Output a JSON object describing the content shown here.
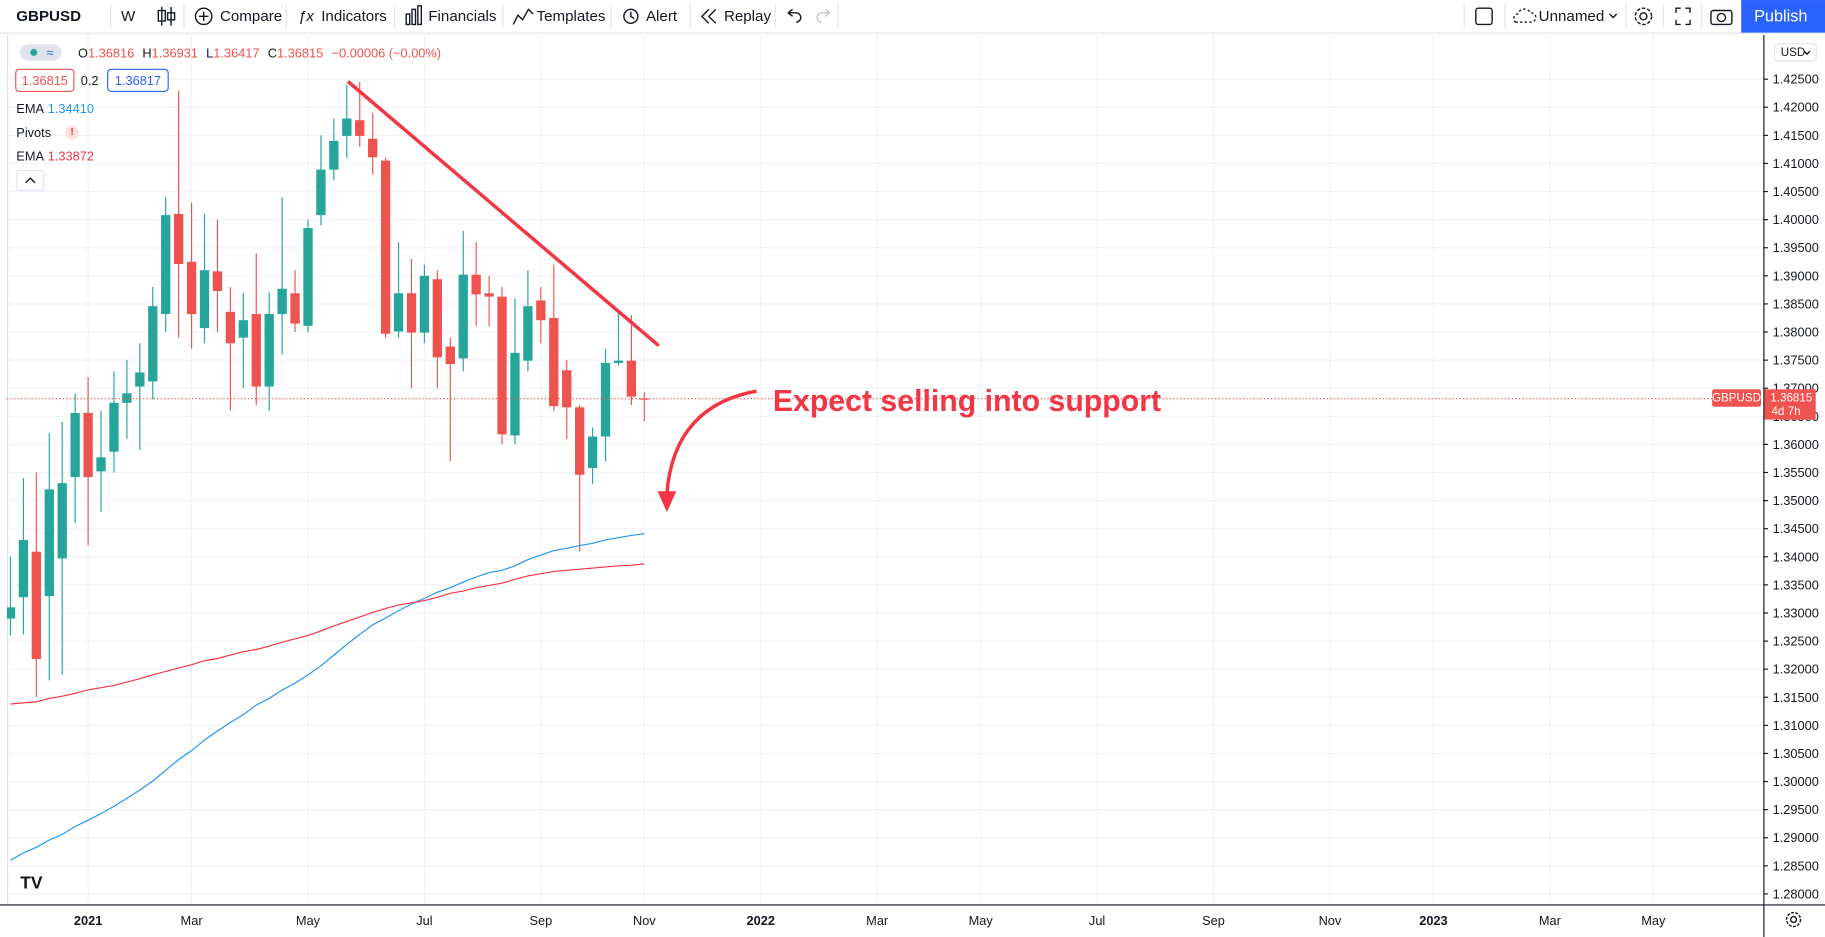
{
  "toolbar": {
    "interval": "W",
    "buttons": [
      "Compare",
      "Indicators",
      "Financials",
      "Templates",
      "Alert",
      "Replay"
    ],
    "layout_name": "Unnamed",
    "publish": "Publish"
  },
  "chart_data": {
    "type": "candlestick",
    "currency": "USD",
    "ohlc_labels": [
      "O",
      "H",
      "L",
      "C"
    ],
    "change_label": "−0.00006 (−0.00%)",
    "quote": {
      "bid": 1.36815,
      "spread": 0.2,
      "ask": 1.36817
    },
    "indicators": [
      "Pivots"
    ],
    "countdown": "4d 7h",
    "annotation": "Expect selling into support",
    "grid": true,
    "ylim": [
      1.27814,
      1.43287
    ],
    "yticks": [
      {
        "value": 1.28,
        "label": "1.28000"
      },
      {
        "value": 1.285,
        "label": "1.28500"
      },
      {
        "value": 1.29,
        "label": "1.29000"
      },
      {
        "value": 1.295,
        "label": "1.29500"
      },
      {
        "value": 1.3,
        "label": "1.30000"
      },
      {
        "value": 1.305,
        "label": "1.30500"
      },
      {
        "value": 1.31,
        "label": "1.31000"
      },
      {
        "value": 1.315,
        "label": "1.31500"
      },
      {
        "value": 1.32,
        "label": "1.32000"
      },
      {
        "value": 1.325,
        "label": "1.32500"
      },
      {
        "value": 1.33,
        "label": "1.33000"
      },
      {
        "value": 1.335,
        "label": "1.33500"
      },
      {
        "value": 1.34,
        "label": "1.34000"
      },
      {
        "value": 1.345,
        "label": "1.34500"
      },
      {
        "value": 1.35,
        "label": "1.35000"
      },
      {
        "value": 1.355,
        "label": "1.35500"
      },
      {
        "value": 1.36,
        "label": "1.36000"
      },
      {
        "value": 1.365,
        "label": "1.36500"
      },
      {
        "value": 1.37,
        "label": "1.37000"
      },
      {
        "value": 1.375,
        "label": "1.37500"
      },
      {
        "value": 1.38,
        "label": "1.38000"
      },
      {
        "value": 1.385,
        "label": "1.38500"
      },
      {
        "value": 1.39,
        "label": "1.39000"
      },
      {
        "value": 1.395,
        "label": "1.39500"
      },
      {
        "value": 1.4,
        "label": "1.40000"
      },
      {
        "value": 1.405,
        "label": "1.40500"
      },
      {
        "value": 1.41,
        "label": "1.41000"
      },
      {
        "value": 1.415,
        "label": "1.41500"
      },
      {
        "value": 1.42,
        "label": "1.42000"
      },
      {
        "value": 1.425,
        "label": "1.42500"
      }
    ],
    "categories": [
      null,
      null,
      null,
      null,
      null,
      null,
      "2021",
      null,
      null,
      null,
      null,
      null,
      null,
      null,
      "Mar",
      null,
      null,
      null,
      null,
      null,
      null,
      null,
      null,
      "May",
      null,
      null,
      null,
      null,
      null,
      null,
      null,
      null,
      "Jul",
      null,
      null,
      null,
      null,
      null,
      null,
      null,
      null,
      "Sep",
      null,
      null,
      null,
      null,
      null,
      null,
      null,
      "Nov",
      null,
      null,
      null,
      null,
      null,
      null,
      null,
      null,
      "2022",
      null,
      null,
      null,
      null,
      null,
      null,
      null,
      null,
      "Mar",
      null,
      null,
      null,
      null,
      null,
      null,
      null,
      "May",
      null,
      null,
      null,
      null,
      null,
      null,
      null,
      null,
      "Jul",
      null,
      null,
      null,
      null,
      null,
      null,
      null,
      null,
      "Sep",
      null,
      null,
      null,
      null,
      null,
      null,
      null,
      null,
      "Nov",
      null,
      null,
      null,
      null,
      null,
      null,
      null,
      "2023",
      null,
      null,
      null,
      null,
      null,
      null,
      null,
      null,
      "Mar",
      null,
      null,
      null,
      null,
      null,
      null,
      null,
      "May",
      null,
      null,
      null,
      null,
      null,
      null,
      null,
      null
    ],
    "series": [
      {
        "name": "GBPUSD",
        "up_color": "#26a69a",
        "down_color": "#ef5350",
        "values": [
          [
            1.329,
            1.34,
            1.326,
            1.331
          ],
          [
            1.3328,
            1.354,
            1.3262,
            1.343
          ],
          [
            1.3409,
            1.355,
            1.315,
            1.3218
          ],
          [
            1.333,
            1.362,
            1.318,
            1.352
          ],
          [
            1.3397,
            1.364,
            1.319,
            1.3531
          ],
          [
            1.3542,
            1.369,
            1.346,
            1.3656
          ],
          [
            1.3656,
            1.372,
            1.342,
            1.3542
          ],
          [
            1.3552,
            1.366,
            1.348,
            1.3577
          ],
          [
            1.3587,
            1.373,
            1.355,
            1.3674
          ],
          [
            1.3674,
            1.375,
            1.361,
            1.3691
          ],
          [
            1.3703,
            1.378,
            1.359,
            1.3728
          ],
          [
            1.3712,
            1.388,
            1.368,
            1.3846
          ],
          [
            1.3832,
            1.404,
            1.38,
            1.4008
          ],
          [
            1.401,
            1.423,
            1.379,
            1.3921
          ],
          [
            1.3925,
            1.403,
            1.377,
            1.3832
          ],
          [
            1.3807,
            1.401,
            1.378,
            1.391
          ],
          [
            1.3908,
            1.4,
            1.38,
            1.3873
          ],
          [
            1.3836,
            1.388,
            1.366,
            1.378
          ],
          [
            1.379,
            1.387,
            1.37,
            1.3821
          ],
          [
            1.3832,
            1.394,
            1.367,
            1.3703
          ],
          [
            1.3703,
            1.387,
            1.366,
            1.3832
          ],
          [
            1.3832,
            1.404,
            1.376,
            1.3877
          ],
          [
            1.3869,
            1.391,
            1.38,
            1.3815
          ],
          [
            1.3811,
            1.4,
            1.38,
            1.3985
          ],
          [
            1.4008,
            1.415,
            1.399,
            1.4089
          ],
          [
            1.4089,
            1.418,
            1.407,
            1.414
          ],
          [
            1.4149,
            1.424,
            1.411,
            1.418
          ],
          [
            1.4177,
            1.4245,
            1.413,
            1.4149
          ],
          [
            1.4144,
            1.419,
            1.408,
            1.4111
          ],
          [
            1.4105,
            1.411,
            1.379,
            1.3797
          ],
          [
            1.3801,
            1.396,
            1.379,
            1.3869
          ],
          [
            1.3869,
            1.393,
            1.37,
            1.3799
          ],
          [
            1.3799,
            1.392,
            1.378,
            1.39
          ],
          [
            1.3894,
            1.391,
            1.37,
            1.3755
          ],
          [
            1.3774,
            1.379,
            1.357,
            1.3743
          ],
          [
            1.3753,
            1.398,
            1.373,
            1.3902
          ],
          [
            1.3902,
            1.396,
            1.381,
            1.3867
          ],
          [
            1.3869,
            1.39,
            1.381,
            1.3863
          ],
          [
            1.3863,
            1.388,
            1.36,
            1.3618
          ],
          [
            1.3616,
            1.386,
            1.36,
            1.3763
          ],
          [
            1.3749,
            1.391,
            1.373,
            1.3846
          ],
          [
            1.3856,
            1.388,
            1.378,
            1.3821
          ],
          [
            1.3825,
            1.392,
            1.366,
            1.3668
          ],
          [
            1.3732,
            1.375,
            1.361,
            1.3666
          ],
          [
            1.3666,
            1.367,
            1.341,
            1.3546
          ],
          [
            1.3558,
            1.363,
            1.353,
            1.3614
          ],
          [
            1.3614,
            1.377,
            1.357,
            1.3745
          ],
          [
            1.3745,
            1.384,
            1.374,
            1.3749
          ],
          [
            1.3749,
            1.383,
            1.367,
            1.3685
          ],
          [
            1.36816,
            1.36931,
            1.36417,
            1.36815
          ],
          null,
          null,
          null,
          null,
          null,
          null,
          null,
          null,
          null,
          null,
          null,
          null,
          null,
          null,
          null,
          null,
          null,
          null,
          null,
          null,
          null,
          null,
          null,
          null,
          null,
          null,
          null,
          null,
          null,
          null,
          null,
          null,
          null,
          null,
          null,
          null,
          null,
          null,
          null,
          null,
          null,
          null,
          null,
          null,
          null,
          null,
          null,
          null,
          null,
          null,
          null,
          null,
          null,
          null,
          null,
          null,
          null,
          null,
          null,
          null,
          null,
          null,
          null,
          null,
          null,
          null,
          null,
          null,
          null,
          null,
          null,
          null,
          null,
          null,
          null,
          null,
          null,
          null,
          null,
          null,
          null,
          null,
          null,
          null,
          null,
          null
        ]
      },
      {
        "name": "EMA",
        "color": "#2196f3",
        "legend_value": {
          "value": 1.3441,
          "label": "1.34410"
        },
        "values": [
          1.286,
          1.2873,
          1.2883,
          1.2896,
          1.2906,
          1.292,
          1.2931,
          1.2943,
          1.2956,
          1.297,
          1.2985,
          1.3001,
          1.302,
          1.3039,
          1.3055,
          1.3074,
          1.309,
          1.3105,
          1.3119,
          1.3136,
          1.3148,
          1.3163,
          1.3175,
          1.319,
          1.3206,
          1.3225,
          1.3244,
          1.3262,
          1.3279,
          1.3291,
          1.3304,
          1.3316,
          1.3326,
          1.3337,
          1.3345,
          1.3355,
          1.3364,
          1.3372,
          1.3376,
          1.3384,
          1.3395,
          1.3403,
          1.3411,
          1.3415,
          1.342,
          1.3424,
          1.343,
          1.3434,
          1.3438,
          1.3441,
          null,
          null,
          null,
          null,
          null,
          null,
          null,
          null,
          null,
          null,
          null,
          null,
          null,
          null,
          null,
          null,
          null,
          null,
          null,
          null,
          null,
          null,
          null,
          null,
          null,
          null,
          null,
          null,
          null,
          null,
          null,
          null,
          null,
          null,
          null,
          null,
          null,
          null,
          null,
          null,
          null,
          null,
          null,
          null,
          null,
          null,
          null,
          null,
          null,
          null,
          null,
          null,
          null,
          null,
          null,
          null,
          null,
          null,
          null,
          null,
          null,
          null,
          null,
          null,
          null,
          null,
          null,
          null,
          null,
          null,
          null,
          null,
          null,
          null,
          null,
          null,
          null,
          null,
          null,
          null,
          null,
          null,
          null,
          null,
          null,
          null
        ]
      },
      {
        "name": "EMA",
        "color": "#f23645",
        "legend_value": 1.33872,
        "values": [
          1.3138,
          1.314,
          1.3142,
          1.3148,
          1.3152,
          1.3157,
          1.3163,
          1.3167,
          1.3171,
          1.3177,
          1.3183,
          1.319,
          1.3196,
          1.3202,
          1.3208,
          1.3215,
          1.3219,
          1.3225,
          1.3231,
          1.3235,
          1.3241,
          1.3248,
          1.3254,
          1.326,
          1.3268,
          1.3277,
          1.3285,
          1.3293,
          1.3301,
          1.3308,
          1.3314,
          1.3318,
          1.3322,
          1.3328,
          1.3335,
          1.3339,
          1.3345,
          1.3349,
          1.3353,
          1.336,
          1.3366,
          1.337,
          1.3374,
          1.3376,
          1.3378,
          1.338,
          1.3382,
          1.3384,
          1.3385,
          1.33872,
          null,
          null,
          null,
          null,
          null,
          null,
          null,
          null,
          null,
          null,
          null,
          null,
          null,
          null,
          null,
          null,
          null,
          null,
          null,
          null,
          null,
          null,
          null,
          null,
          null,
          null,
          null,
          null,
          null,
          null,
          null,
          null,
          null,
          null,
          null,
          null,
          null,
          null,
          null,
          null,
          null,
          null,
          null,
          null,
          null,
          null,
          null,
          null,
          null,
          null,
          null,
          null,
          null,
          null,
          null,
          null,
          null,
          null,
          null,
          null,
          null,
          null,
          null,
          null,
          null,
          null,
          null,
          null,
          null,
          null,
          null,
          null,
          null,
          null,
          null,
          null,
          null,
          null,
          null,
          null,
          null,
          null,
          null,
          null,
          null,
          null
        ]
      }
    ]
  }
}
